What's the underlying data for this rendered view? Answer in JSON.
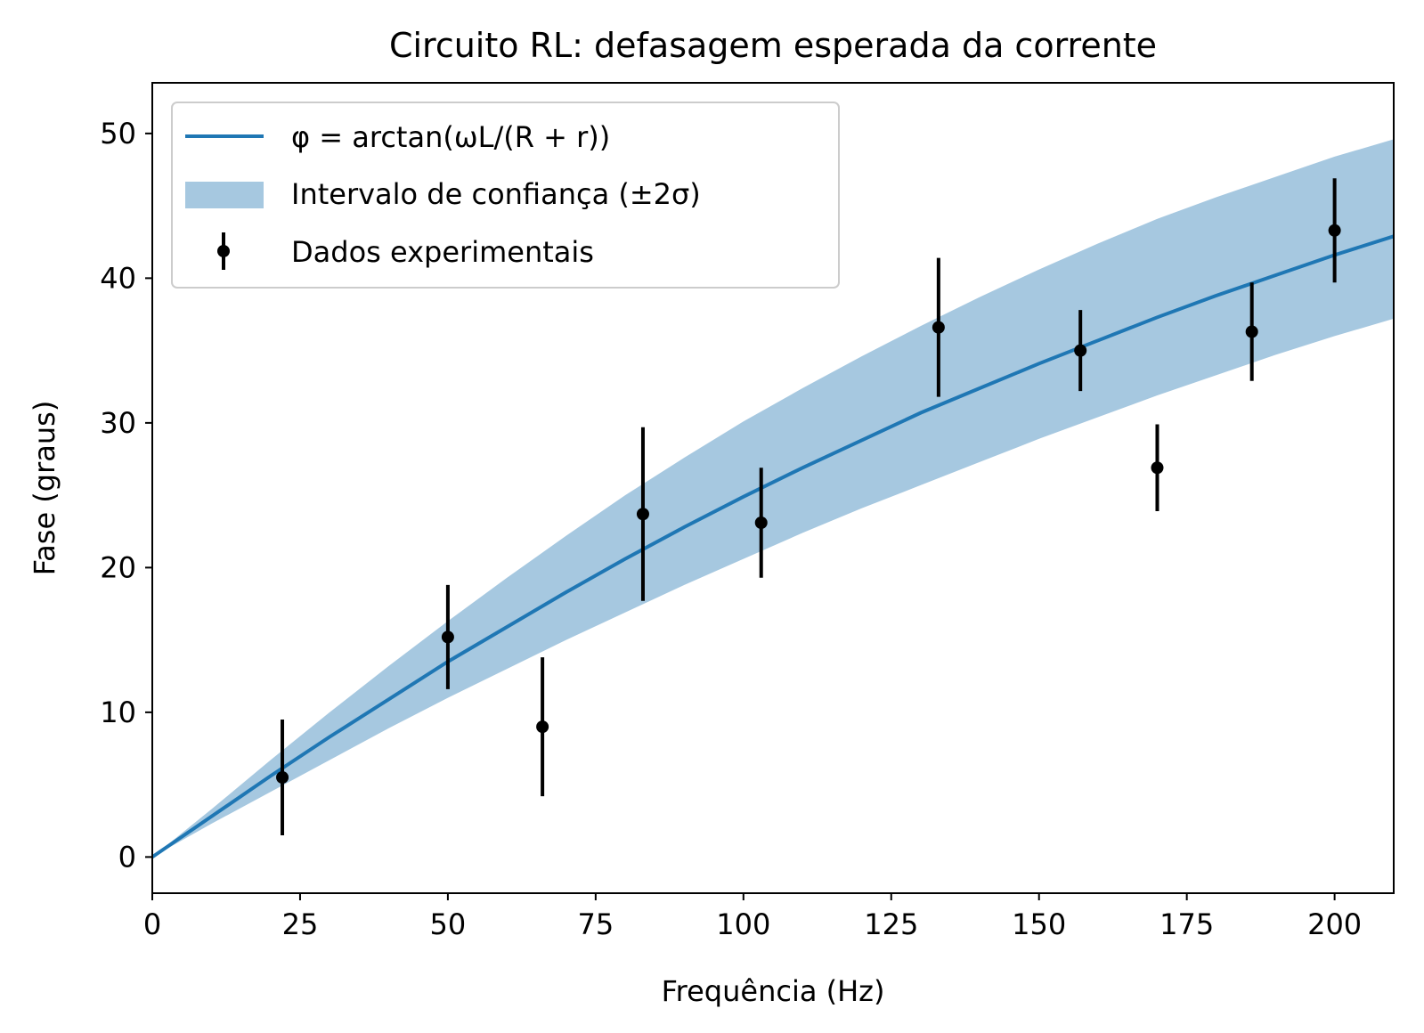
{
  "chart_data": {
    "type": "line",
    "title": "Circuito RL: defasagem esperada da corrente",
    "xlabel": "Frequência (Hz)",
    "ylabel": "Fase (graus)",
    "xlim": [
      0,
      210
    ],
    "ylim": [
      -2.5,
      53.5
    ],
    "xticks": [
      0,
      25,
      50,
      75,
      100,
      125,
      150,
      175,
      200
    ],
    "yticks": [
      0,
      10,
      20,
      30,
      40,
      50
    ],
    "grid": false,
    "legend_position": "top-left",
    "model": {
      "name": "φ = arctan(ωL/(R + r))",
      "color": "#1f77b4",
      "x": [
        0,
        10,
        20,
        30,
        40,
        50,
        60,
        70,
        80,
        90,
        100,
        110,
        120,
        130,
        140,
        150,
        160,
        170,
        180,
        190,
        200,
        210
      ],
      "y": [
        0.0,
        2.8,
        5.6,
        8.3,
        10.9,
        13.5,
        15.9,
        18.3,
        20.6,
        22.8,
        24.9,
        26.9,
        28.8,
        30.7,
        32.4,
        34.1,
        35.7,
        37.3,
        38.8,
        40.2,
        41.6,
        42.9
      ]
    },
    "confidence_band": {
      "name": "Intervalo de confiança (±2σ)",
      "color": "#a6c8e0",
      "x": [
        0,
        10,
        20,
        30,
        40,
        50,
        60,
        70,
        80,
        90,
        100,
        110,
        120,
        130,
        140,
        150,
        160,
        170,
        180,
        190,
        200,
        210
      ],
      "lower": [
        0.0,
        2.3,
        4.5,
        6.7,
        8.9,
        11.0,
        13.0,
        15.0,
        16.9,
        18.8,
        20.6,
        22.4,
        24.1,
        25.7,
        27.3,
        28.9,
        30.4,
        31.9,
        33.3,
        34.7,
        36.0,
        37.2
      ],
      "upper": [
        0.0,
        3.3,
        6.7,
        10.0,
        13.2,
        16.3,
        19.3,
        22.2,
        25.0,
        27.6,
        30.1,
        32.4,
        34.6,
        36.7,
        38.7,
        40.6,
        42.4,
        44.1,
        45.6,
        47.0,
        48.4,
        49.6
      ]
    },
    "measurements": {
      "name": "Dados experimentais",
      "color": "#000000",
      "x": [
        22,
        50,
        66,
        83,
        103,
        133,
        157,
        170,
        186,
        200
      ],
      "y": [
        5.5,
        15.2,
        9.0,
        23.7,
        23.1,
        36.6,
        35.0,
        26.9,
        36.3,
        43.3
      ],
      "yerr": [
        4.0,
        3.6,
        4.8,
        6.0,
        3.8,
        4.8,
        2.8,
        3.0,
        3.4,
        3.6
      ]
    }
  }
}
